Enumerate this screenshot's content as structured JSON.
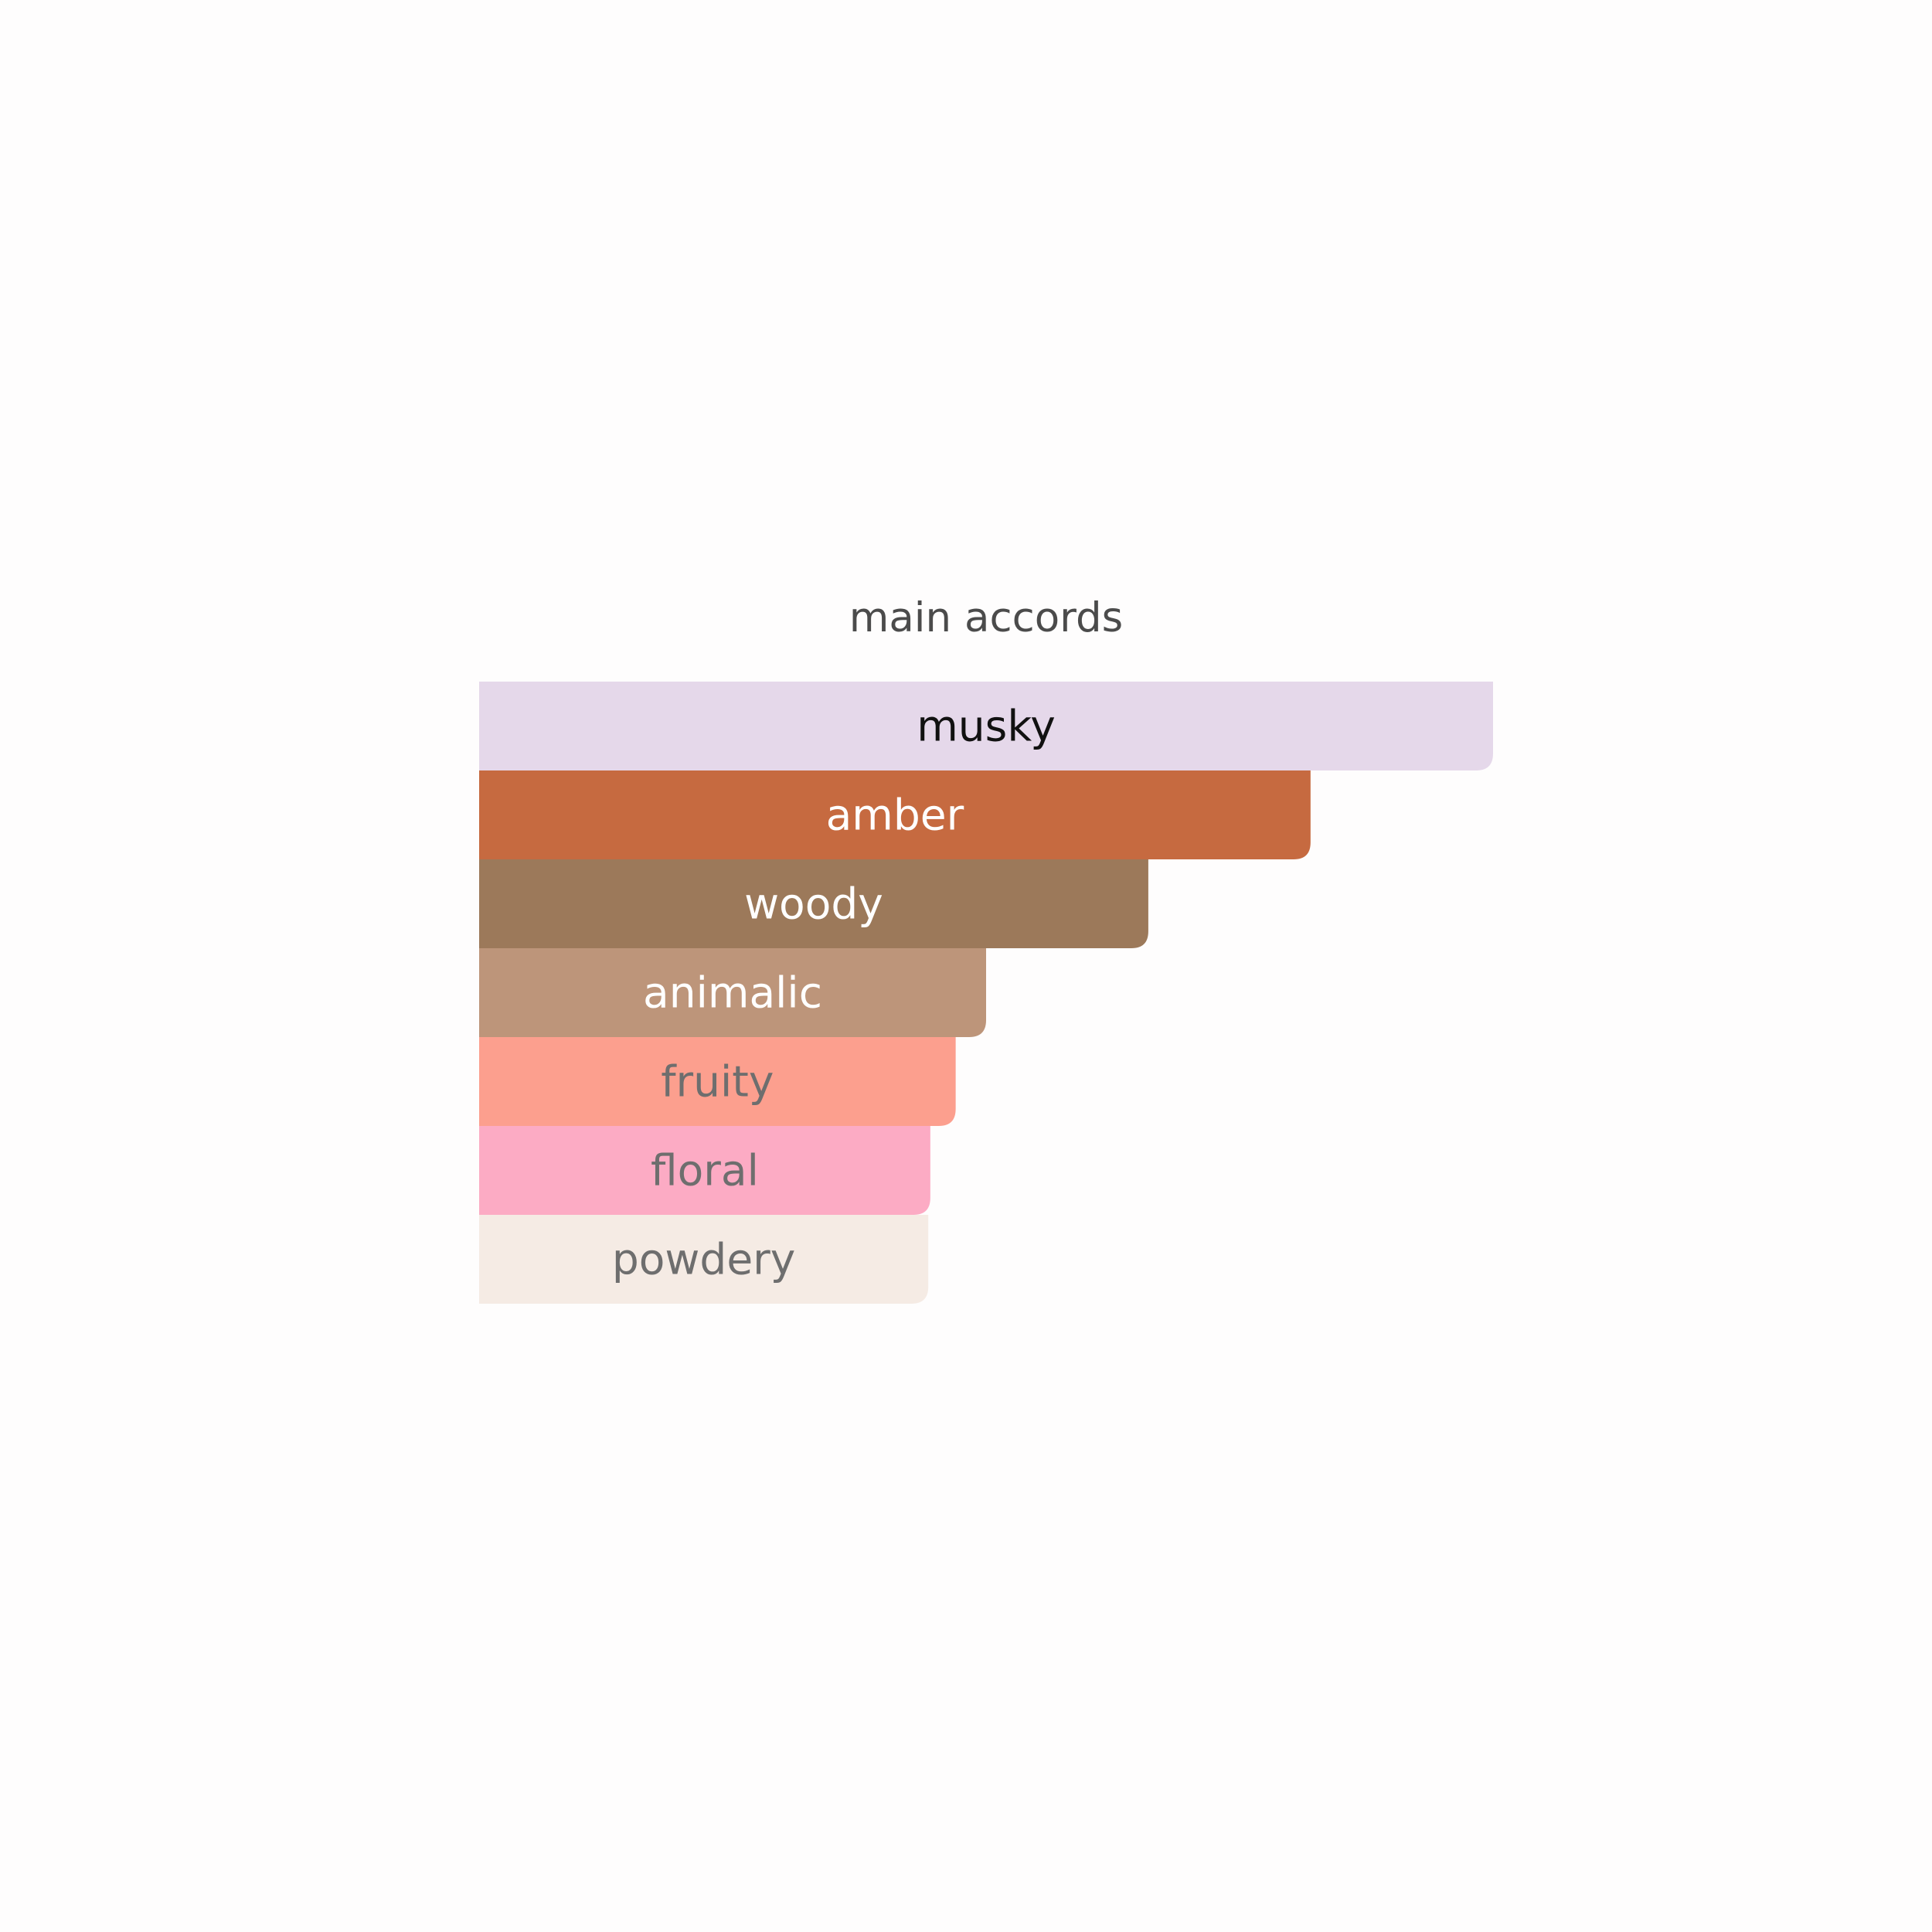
{
  "chart_data": {
    "type": "bar",
    "orientation": "horizontal",
    "title": "main accords",
    "grid": false,
    "legend": "none",
    "xlim": [
      0,
      100
    ],
    "categories": [
      "musky",
      "amber",
      "woody",
      "animalic",
      "fruity",
      "floral",
      "powdery"
    ],
    "values": [
      100,
      82,
      66,
      50,
      47,
      44.5,
      44.3
    ],
    "colors": [
      "#e5d8ea",
      "#c66a40",
      "#9c795a",
      "#bd957a",
      "#fc9f8e",
      "#fcabc4",
      "#f5ebe4"
    ],
    "label_colors": [
      "#111111",
      "#ffffff",
      "#ffffff",
      "#ffffff",
      "#6e6e6e",
      "#6e6e6e",
      "#6e6e6e"
    ]
  }
}
